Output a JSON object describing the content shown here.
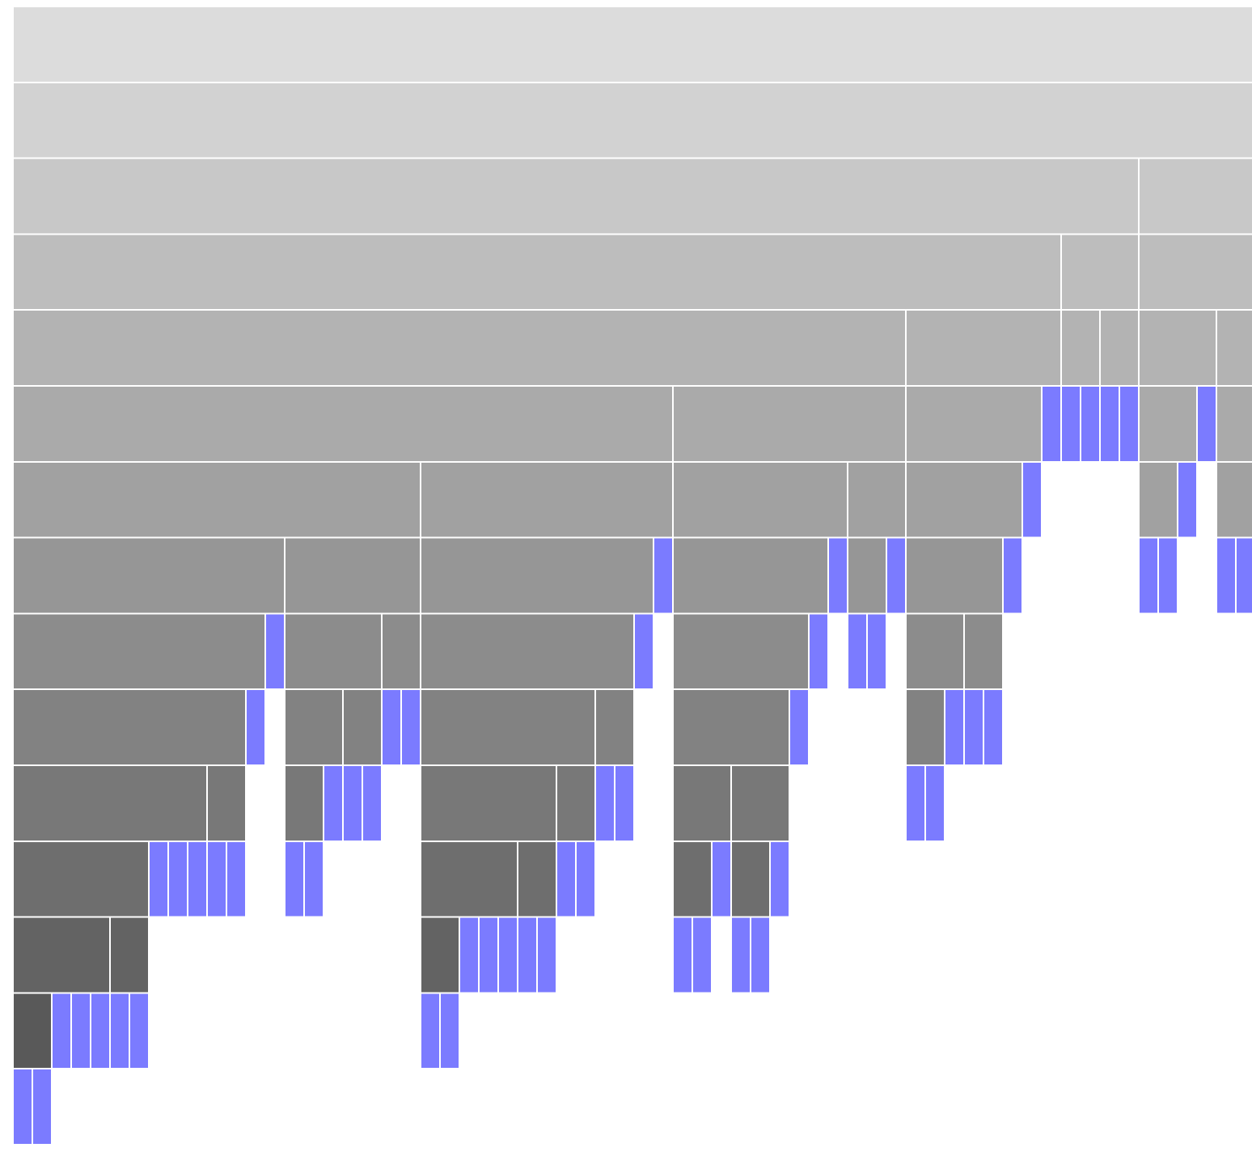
{
  "chart_data": {
    "type": "icicle",
    "orientation": "top-down",
    "unit_width": 24,
    "colors": {
      "leaf": "#7b7bff",
      "depth_shades": [
        "#dcdcdc",
        "#d2d2d2",
        "#c8c8c8",
        "#bdbdbd",
        "#b3b3b3",
        "#aaaaaa",
        "#a1a1a1",
        "#969696",
        "#8c8c8c",
        "#828282",
        "#787878",
        "#6e6e6e",
        "#636363",
        "#595959"
      ]
    },
    "tree": {
      "c": [
        {
          "c": [
            {
              "c": [
                {
                  "c": [
                    {
                      "c": [
                        {
                          "c": [
                            {
                              "c": [
                                {
                                  "c": [
                                    {
                                      "c": [
                                        {
                                          "c": [
                                            {
                                              "c": [
                                                {
                                                  "c": [
                                                    {
                                                      "c": [
                                                        {
                                                          "c": [
                                                            {},
                                                            {}
                                                          ]
                                                        },
                                                        {},
                                                        {},
                                                        {}
                                                      ]
                                                    },
                                                    {
                                                      "c": [
                                                        {},
                                                        {}
                                                      ]
                                                    }
                                                  ]
                                                },
                                                {},
                                                {},
                                                {}
                                              ]
                                            },
                                            {
                                              "c": [
                                                {},
                                                {}
                                              ]
                                            }
                                          ]
                                        },
                                        {}
                                      ]
                                    },
                                    {}
                                  ]
                                },
                                {
                                  "c": [
                                    {
                                      "c": [
                                        {
                                          "c": [
                                            {
                                              "c": [
                                                {},
                                                {}
                                              ]
                                            },
                                            {}
                                          ]
                                        },
                                        {
                                          "c": [
                                            {},
                                            {}
                                          ]
                                        }
                                      ]
                                    },
                                    {
                                      "c": [
                                        {},
                                        {}
                                      ]
                                    }
                                  ]
                                }
                              ]
                            },
                            {
                              "c": [
                                {
                                  "c": [
                                    {
                                      "c": [
                                        {
                                          "c": [
                                            {
                                              "c": [
                                                {
                                                  "c": [
                                                    {
                                                      "c": [
                                                        {},
                                                        {}
                                                      ]
                                                    },
                                                    {},
                                                    {},
                                                    {}
                                                  ]
                                                },
                                                {
                                                  "c": [
                                                    {},
                                                    {}
                                                  ]
                                                }
                                              ]
                                            },
                                            {
                                              "c": [
                                                {},
                                                {}
                                              ]
                                            }
                                          ]
                                        },
                                        {
                                          "c": [
                                            {},
                                            {}
                                          ]
                                        }
                                      ]
                                    },
                                    {}
                                  ]
                                },
                                {}
                              ]
                            }
                          ]
                        },
                        {
                          "c": [
                            {
                              "c": [
                                {
                                  "c": [
                                    {
                                      "c": [
                                        {
                                          "c": [
                                            {
                                              "c": [
                                                {
                                                  "c": [
                                                    {},
                                                    {}
                                                  ]
                                                },
                                                {}
                                              ]
                                            },
                                            {
                                              "c": [
                                                {
                                                  "c": [
                                                    {},
                                                    {}
                                                  ]
                                                },
                                                {}
                                              ]
                                            }
                                          ]
                                        },
                                        {}
                                      ]
                                    },
                                    {}
                                  ]
                                },
                                {}
                              ]
                            },
                            {
                              "c": [
                                {
                                  "c": [
                                    {},
                                    {}
                                  ]
                                },
                                {}
                              ]
                            }
                          ]
                        }
                      ]
                    },
                    {
                      "c": [
                        {
                          "c": [
                            {
                              "c": [
                                {
                                  "c": [
                                    {
                                      "c": [
                                        {
                                          "c": [
                                            {},
                                            {}
                                          ]
                                        },
                                        {}
                                      ]
                                    },
                                    {
                                      "c": [
                                        {},
                                        {}
                                      ]
                                    }
                                  ]
                                },
                                {}
                              ]
                            },
                            {}
                          ]
                        },
                        {}
                      ]
                    }
                  ]
                },
                {
                  "c": [
                    {
                      "c": [
                        {},
                        {}
                      ]
                    },
                    {
                      "c": [
                        {},
                        {}
                      ]
                    }
                  ]
                }
              ]
            },
            {
              "c": [
                {
                  "c": [
                    {
                      "c": [
                        {
                          "c": [
                            {
                              "c": [
                                {},
                                {}
                              ]
                            },
                            {}
                          ]
                        },
                        {}
                      ]
                    },
                    {
                      "c": [
                        {
                          "c": [
                            {
                              "c": [
                                {},
                                {}
                              ]
                            },
                            {}
                          ]
                        },
                        {}
                      ]
                    }
                  ]
                },
                {}
              ]
            }
          ]
        },
        {}
      ]
    }
  }
}
